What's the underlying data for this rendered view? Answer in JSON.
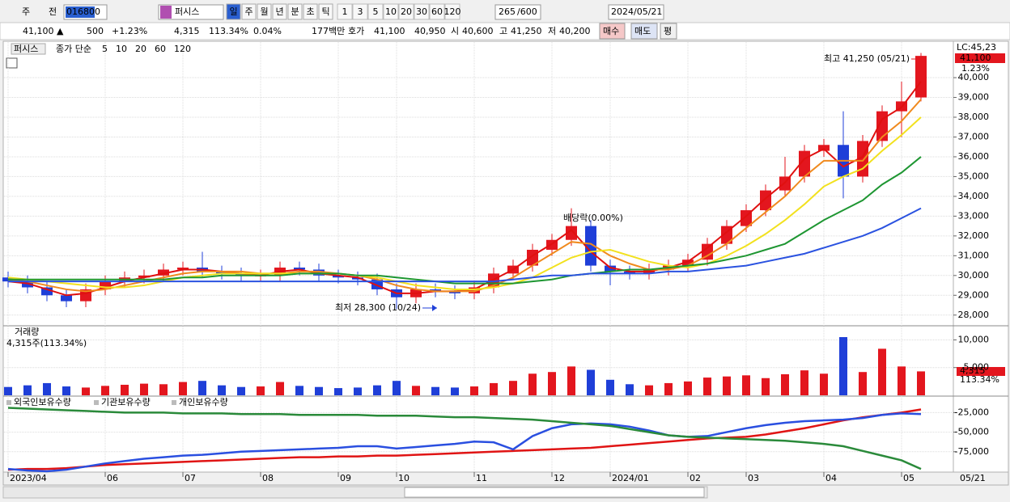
{
  "toolbar": {
    "market": "주",
    "prev": "전",
    "code": "016800",
    "name": "퍼시스",
    "periods": [
      "일",
      "주",
      "월",
      "년",
      "분",
      "초",
      "틱"
    ],
    "intervals": [
      "1",
      "3",
      "5",
      "10",
      "20",
      "30",
      "60",
      "120"
    ],
    "count": "265",
    "max": "/600",
    "date": "2024/05/21"
  },
  "quote": {
    "price": "41,100 ▲",
    "change": "500",
    "change_pct": "+1.23%",
    "volume": "4,315",
    "volume_pct": "113.34%",
    "turnover_pct": "0.04%",
    "amount": "177백만",
    "ask_label": "호가",
    "ask": "41,100",
    "bid": "40,950",
    "open_label": "시",
    "open": "40,600",
    "high_label": "고",
    "high": "41,250",
    "low_label": "저",
    "low": "40,200",
    "buy": "매수",
    "sell": "매도",
    "avg": "평"
  },
  "axis_badges": {
    "lc": "LC:45,23",
    "price": "41,100",
    "pct": "1.23%",
    "last_date": "05/21",
    "volume": "4,315",
    "volume_pct": "113.34%"
  },
  "chart_data": [
    {
      "type": "candlestick",
      "title": "퍼시스",
      "subtitle": "종가 단순",
      "up_color": "#e3161e",
      "down_color": "#1f3fd8",
      "categories": [
        "2023/04",
        null,
        null,
        null,
        null,
        "06",
        null,
        null,
        null,
        "07",
        null,
        null,
        null,
        "08",
        null,
        null,
        null,
        "09",
        null,
        null,
        "10",
        null,
        null,
        null,
        "11",
        null,
        null,
        null,
        "12",
        null,
        null,
        "2024/01",
        null,
        null,
        null,
        "02",
        null,
        null,
        "03",
        null,
        null,
        null,
        "04",
        null,
        null,
        null,
        "05",
        null
      ],
      "open": [
        29900,
        29700,
        29400,
        29000,
        28700,
        29300,
        29700,
        29900,
        30000,
        30300,
        30400,
        30200,
        30100,
        30000,
        30000,
        30400,
        30300,
        30000,
        29900,
        29800,
        29300,
        28900,
        29300,
        29200,
        29100,
        29400,
        30100,
        30500,
        31300,
        31800,
        32500,
        30500,
        30200,
        30100,
        30300,
        30500,
        30800,
        31600,
        32500,
        33300,
        34300,
        35000,
        36300,
        36600,
        35000,
        36800,
        38300,
        39000
      ],
      "high": [
        30200,
        30000,
        29700,
        29300,
        29600,
        30000,
        30200,
        30300,
        30600,
        30700,
        31200,
        30500,
        30400,
        30300,
        30700,
        30700,
        30600,
        30300,
        30200,
        30100,
        29600,
        29600,
        29600,
        29500,
        29700,
        30400,
        30800,
        31600,
        32100,
        33400,
        32800,
        30800,
        30500,
        30600,
        30800,
        31100,
        31900,
        32800,
        33600,
        34600,
        36000,
        36600,
        36900,
        38300,
        37100,
        38600,
        39800,
        41250
      ],
      "low": [
        29400,
        29100,
        28700,
        28400,
        28400,
        29000,
        29400,
        29600,
        29700,
        30000,
        29900,
        29800,
        29700,
        29700,
        29700,
        30000,
        29700,
        29600,
        29500,
        29000,
        28300,
        28600,
        28900,
        28800,
        28800,
        29100,
        29800,
        30200,
        31000,
        31500,
        30200,
        29500,
        29800,
        29800,
        30000,
        30200,
        30500,
        31300,
        32200,
        33000,
        34000,
        34700,
        36000,
        33900,
        34700,
        36500,
        37000,
        38800
      ],
      "close": [
        29700,
        29400,
        29000,
        28700,
        29300,
        29700,
        29900,
        30000,
        30300,
        30400,
        30200,
        30100,
        30000,
        30000,
        30400,
        30300,
        30000,
        29900,
        29800,
        29300,
        28900,
        29300,
        29200,
        29100,
        29400,
        30100,
        30500,
        31300,
        31800,
        32500,
        30500,
        30200,
        30100,
        30300,
        30500,
        30800,
        31600,
        32500,
        33300,
        34300,
        35000,
        36300,
        36600,
        35000,
        36800,
        38300,
        38800,
        41100
      ],
      "series": [
        {
          "name": "5",
          "color": "#e01010",
          "values": [
            29700,
            29600,
            29300,
            29000,
            29100,
            29400,
            29700,
            29900,
            30100,
            30300,
            30300,
            30200,
            30100,
            30000,
            30200,
            30300,
            30100,
            30000,
            29900,
            29500,
            29100,
            29100,
            29200,
            29200,
            29300,
            29800,
            30300,
            31000,
            31600,
            32300,
            31200,
            30400,
            30200,
            30200,
            30400,
            30700,
            31400,
            32200,
            33000,
            33900,
            34700,
            35900,
            36400,
            35500,
            36000,
            37900,
            38500,
            39800
          ]
        },
        {
          "name": "10",
          "color": "#f08a1e",
          "values": [
            29800,
            29700,
            29500,
            29300,
            29200,
            29300,
            29500,
            29700,
            29900,
            30100,
            30200,
            30200,
            30200,
            30100,
            30100,
            30200,
            30200,
            30100,
            30000,
            29800,
            29500,
            29300,
            29200,
            29200,
            29200,
            29500,
            29900,
            30500,
            31100,
            31700,
            31600,
            31000,
            30600,
            30300,
            30300,
            30500,
            31000,
            31600,
            32400,
            33200,
            34000,
            35000,
            35800,
            35800,
            35800,
            37000,
            37800,
            38900
          ]
        },
        {
          "name": "20",
          "color": "#f2e11e",
          "values": [
            29900,
            29800,
            29700,
            29600,
            29500,
            29400,
            29400,
            29500,
            29700,
            29900,
            30000,
            30100,
            30100,
            30100,
            30100,
            30100,
            30100,
            30100,
            30000,
            29900,
            29700,
            29500,
            29400,
            29300,
            29300,
            29400,
            29600,
            29900,
            30400,
            30900,
            31200,
            31300,
            31000,
            30700,
            30500,
            30400,
            30600,
            31000,
            31500,
            32100,
            32800,
            33600,
            34500,
            35000,
            35400,
            36300,
            37100,
            38000
          ]
        },
        {
          "name": "60",
          "color": "#1e9632",
          "values": [
            29800,
            29800,
            29800,
            29800,
            29800,
            29800,
            29800,
            29800,
            29800,
            29900,
            29900,
            30000,
            30000,
            30000,
            30000,
            30100,
            30100,
            30100,
            30000,
            30000,
            29900,
            29800,
            29700,
            29600,
            29600,
            29600,
            29600,
            29700,
            29800,
            30000,
            30100,
            30200,
            30300,
            30300,
            30400,
            30500,
            30600,
            30800,
            31000,
            31300,
            31600,
            32200,
            32800,
            33300,
            33800,
            34600,
            35200,
            36000
          ]
        },
        {
          "name": "120",
          "color": "#2a52e0",
          "values": [
            29700,
            29700,
            29700,
            29700,
            29700,
            29700,
            29700,
            29700,
            29700,
            29700,
            29700,
            29700,
            29700,
            29700,
            29700,
            29700,
            29700,
            29700,
            29700,
            29700,
            29700,
            29700,
            29700,
            29700,
            29700,
            29700,
            29800,
            29900,
            30000,
            30000,
            30100,
            30100,
            30100,
            30100,
            30200,
            30200,
            30300,
            30400,
            30500,
            30700,
            30900,
            31100,
            31400,
            31700,
            32000,
            32400,
            32900,
            33400
          ]
        }
      ],
      "ylim": [
        27500,
        41800
      ],
      "yticks": [
        {
          "value": 28000,
          "label": "28,000"
        },
        {
          "value": 29000,
          "label": "29,000"
        },
        {
          "value": 30000,
          "label": "30,000"
        },
        {
          "value": 31000,
          "label": "31,000"
        },
        {
          "value": 32000,
          "label": "32,000"
        },
        {
          "value": 33000,
          "label": "33,000"
        },
        {
          "value": 34000,
          "label": "34,000"
        },
        {
          "value": 35000,
          "label": "35,000"
        },
        {
          "value": 36000,
          "label": "36,000"
        },
        {
          "value": 37000,
          "label": "37,000"
        },
        {
          "value": 38000,
          "label": "38,000"
        },
        {
          "value": 39000,
          "label": "39,000"
        },
        {
          "value": 40000,
          "label": "40,000"
        }
      ],
      "annotations": [
        "최고 41,250 (05/21)",
        "최저 28,300 (10/24)",
        "배당락(0.00%)"
      ],
      "grid": true
    },
    {
      "type": "bar",
      "title": "거래량",
      "subtitle": "4,315주(113.34%)",
      "values": [
        1500,
        1800,
        2200,
        1600,
        1400,
        1700,
        1900,
        2100,
        2000,
        2400,
        2600,
        1800,
        1500,
        1600,
        2400,
        1700,
        1500,
        1300,
        1400,
        1800,
        2600,
        1700,
        1500,
        1400,
        1600,
        2200,
        2600,
        3900,
        4200,
        5200,
        4600,
        2800,
        2000,
        1800,
        2200,
        2500,
        3200,
        3400,
        3600,
        3100,
        3800,
        4500,
        3900,
        10500,
        4200,
        8400,
        5200,
        4315
      ],
      "ylim": [
        0,
        12400
      ],
      "yticks": [
        {
          "value": 5000,
          "label": "5,000"
        },
        {
          "value": 10000,
          "label": "10,000"
        }
      ],
      "grid": true
    },
    {
      "type": "line",
      "series": [
        {
          "name": "외국인보유수량",
          "color": "#e01414",
          "values": [
            -98000,
            -97000,
            -97000,
            -96000,
            -94000,
            -92000,
            -91000,
            -90000,
            -89000,
            -88000,
            -87000,
            -86000,
            -85000,
            -84000,
            -83000,
            -82000,
            -82000,
            -81000,
            -81000,
            -80000,
            -80000,
            -79000,
            -78000,
            -77000,
            -76000,
            -75000,
            -74000,
            -73000,
            -72000,
            -71000,
            -70000,
            -68000,
            -66000,
            -64000,
            -62000,
            -60000,
            -58000,
            -57000,
            -56000,
            -53000,
            -49000,
            -45000,
            -40000,
            -35000,
            -31000,
            -28000,
            -25000,
            -21000
          ]
        },
        {
          "name": "기관보유수량",
          "color": "#2a4fe0",
          "values": [
            -97000,
            -99000,
            -100000,
            -98000,
            -94000,
            -90000,
            -87000,
            -84000,
            -82000,
            -80000,
            -79000,
            -77000,
            -75000,
            -74000,
            -73000,
            -72000,
            -71000,
            -70000,
            -68000,
            -68000,
            -71000,
            -69000,
            -67000,
            -65000,
            -62000,
            -63000,
            -72000,
            -55000,
            -45000,
            -40000,
            -39000,
            -40000,
            -43000,
            -48000,
            -54000,
            -56000,
            -55000,
            -50000,
            -45000,
            -41000,
            -38000,
            -36000,
            -35000,
            -34000,
            -32000,
            -28000,
            -26000,
            -27000
          ]
        },
        {
          "name": "개인보유수량",
          "color": "#2a8a3a",
          "values": [
            -19000,
            -20000,
            -21000,
            -22000,
            -23000,
            -24000,
            -25000,
            -25000,
            -25000,
            -26000,
            -26000,
            -26000,
            -27000,
            -27000,
            -27000,
            -28000,
            -28000,
            -28000,
            -28000,
            -29000,
            -29000,
            -29000,
            -30000,
            -31000,
            -31000,
            -32000,
            -33000,
            -34000,
            -36000,
            -38000,
            -40000,
            -42000,
            -46000,
            -50000,
            -54000,
            -56000,
            -57000,
            -58000,
            -59000,
            -60000,
            -61000,
            -63000,
            -65000,
            -68000,
            -74000,
            -80000,
            -86000,
            -97000
          ]
        }
      ],
      "ylim": [
        -100000,
        -5000
      ],
      "yticks": [
        {
          "value": -25000,
          "label": "-25,000"
        },
        {
          "value": -50000,
          "label": "-50,000"
        },
        {
          "value": -75000,
          "label": "-75,000"
        }
      ],
      "grid": true
    }
  ]
}
